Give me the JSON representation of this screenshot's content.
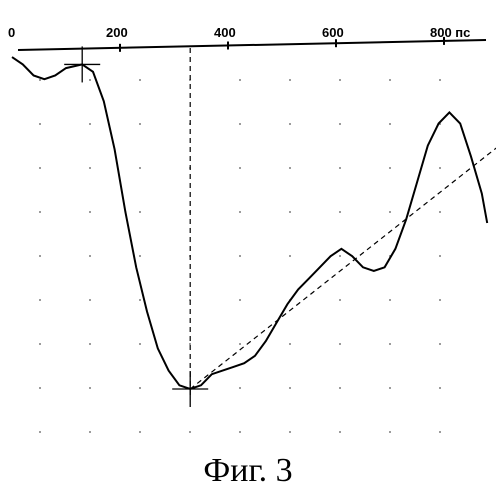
{
  "figure": {
    "caption": "Фиг. 3"
  },
  "chart_data": {
    "type": "line",
    "title": "",
    "xlabel": "",
    "ylabel": "",
    "x_ticks": [
      {
        "value": 0,
        "label": "0"
      },
      {
        "value": 200,
        "label": "200"
      },
      {
        "value": 400,
        "label": "400"
      },
      {
        "value": 600,
        "label": "600"
      },
      {
        "value": 800,
        "label": "800 пс"
      }
    ],
    "xlim": [
      0,
      900
    ],
    "ylim": [
      -100,
      10
    ],
    "grid": "dotted",
    "series": [
      {
        "values_xy": [
          [
            0,
            -3
          ],
          [
            20,
            -5
          ],
          [
            40,
            -8
          ],
          [
            60,
            -9
          ],
          [
            80,
            -8
          ],
          [
            100,
            -6
          ],
          [
            130,
            -5
          ],
          [
            150,
            -7
          ],
          [
            170,
            -15
          ],
          [
            190,
            -28
          ],
          [
            210,
            -45
          ],
          [
            230,
            -60
          ],
          [
            250,
            -72
          ],
          [
            270,
            -82
          ],
          [
            290,
            -88
          ],
          [
            310,
            -92
          ],
          [
            330,
            -93
          ],
          [
            350,
            -92
          ],
          [
            370,
            -89
          ],
          [
            390,
            -88
          ],
          [
            410,
            -87
          ],
          [
            430,
            -86
          ],
          [
            450,
            -84
          ],
          [
            470,
            -80
          ],
          [
            490,
            -75
          ],
          [
            510,
            -70
          ],
          [
            530,
            -66
          ],
          [
            550,
            -63
          ],
          [
            570,
            -60
          ],
          [
            590,
            -57
          ],
          [
            610,
            -55
          ],
          [
            630,
            -57
          ],
          [
            650,
            -60
          ],
          [
            670,
            -61
          ],
          [
            690,
            -60
          ],
          [
            710,
            -55
          ],
          [
            730,
            -47
          ],
          [
            750,
            -37
          ],
          [
            770,
            -27
          ],
          [
            790,
            -21
          ],
          [
            810,
            -18
          ],
          [
            830,
            -21
          ],
          [
            850,
            -30
          ],
          [
            870,
            -40
          ],
          [
            880,
            -48
          ]
        ]
      }
    ],
    "annotations": {
      "markers": [
        {
          "x": 130,
          "y": -5
        },
        {
          "x": 330,
          "y": -93
        }
      ],
      "vertical_dashed_x": 330,
      "dashed_line": {
        "from": [
          330,
          -93
        ],
        "to": [
          900,
          -30
        ]
      }
    }
  }
}
